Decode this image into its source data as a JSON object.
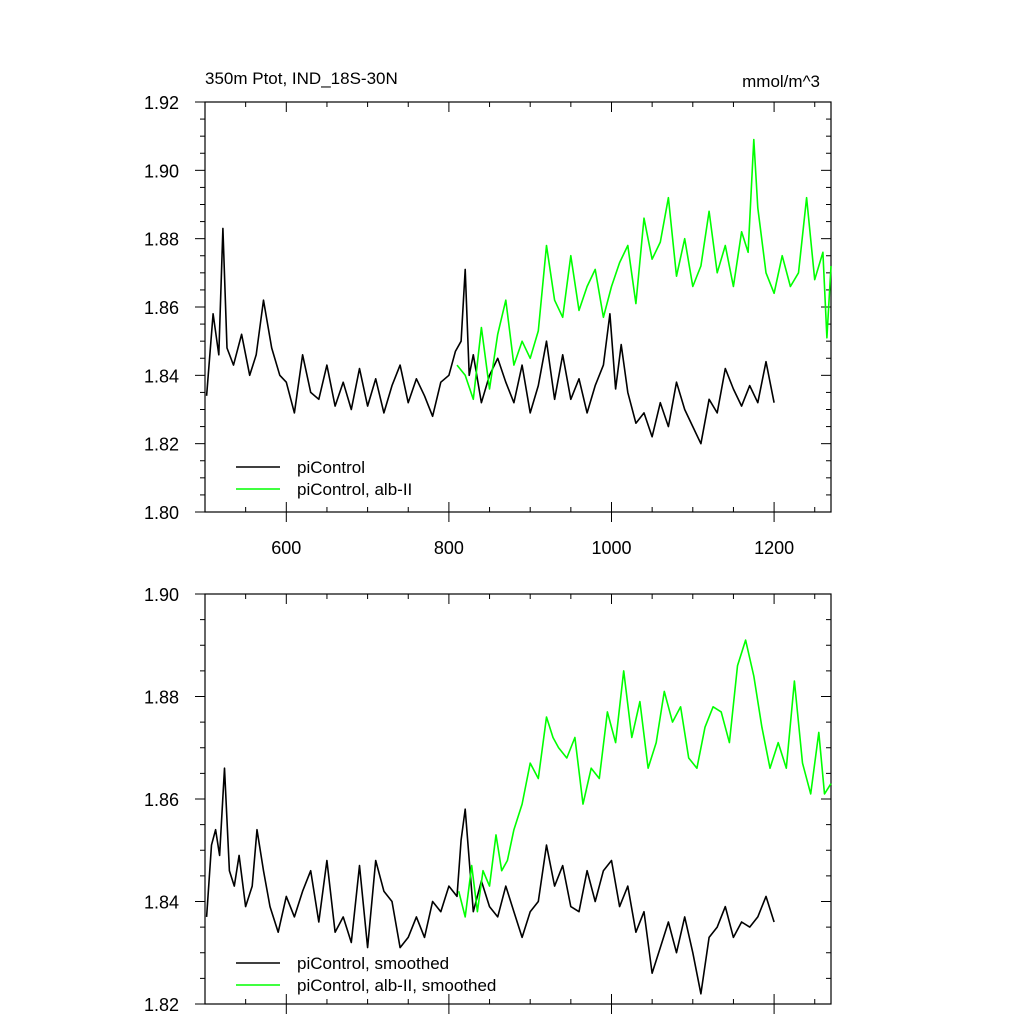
{
  "chart_data": [
    {
      "type": "line",
      "title": "350m Ptot, IND_18S-30N",
      "units": "mmol/m^3",
      "xlim": [
        500,
        1270
      ],
      "ylim": [
        1.8,
        1.92
      ],
      "x_ticks": [
        600,
        800,
        1000,
        1200
      ],
      "x_tick_labels": [
        "600",
        "800",
        "1000",
        "1200"
      ],
      "y_ticks": [
        1.8,
        1.82,
        1.84,
        1.86,
        1.88,
        1.9,
        1.92
      ],
      "y_tick_labels": [
        "1.80",
        "1.82",
        "1.84",
        "1.86",
        "1.88",
        "1.90",
        "1.92"
      ],
      "legend_position": "bottom-left",
      "series": [
        {
          "name": "piControl",
          "color": "#000000",
          "x": [
            502,
            510,
            517,
            522,
            527,
            535,
            545,
            555,
            563,
            572,
            582,
            592,
            600,
            610,
            620,
            630,
            640,
            650,
            660,
            670,
            680,
            690,
            700,
            710,
            720,
            730,
            740,
            750,
            760,
            770,
            780,
            790,
            800,
            808,
            815,
            820,
            825,
            830,
            840,
            850,
            860,
            870,
            880,
            890,
            900,
            910,
            920,
            930,
            940,
            950,
            960,
            970,
            980,
            990,
            998,
            1005,
            1012,
            1020,
            1030,
            1040,
            1050,
            1060,
            1070,
            1080,
            1090,
            1100,
            1110,
            1120,
            1130,
            1140,
            1150,
            1160,
            1170,
            1180,
            1190,
            1200
          ],
          "values": [
            1.834,
            1.858,
            1.846,
            1.883,
            1.848,
            1.843,
            1.852,
            1.84,
            1.846,
            1.862,
            1.848,
            1.84,
            1.838,
            1.829,
            1.846,
            1.835,
            1.833,
            1.843,
            1.831,
            1.838,
            1.83,
            1.842,
            1.831,
            1.839,
            1.829,
            1.837,
            1.843,
            1.832,
            1.839,
            1.834,
            1.828,
            1.838,
            1.84,
            1.847,
            1.85,
            1.871,
            1.84,
            1.846,
            1.832,
            1.84,
            1.845,
            1.838,
            1.832,
            1.843,
            1.829,
            1.837,
            1.85,
            1.833,
            1.846,
            1.833,
            1.839,
            1.829,
            1.837,
            1.843,
            1.858,
            1.836,
            1.849,
            1.835,
            1.826,
            1.829,
            1.822,
            1.832,
            1.825,
            1.838,
            1.83,
            1.825,
            1.82,
            1.833,
            1.829,
            1.842,
            1.836,
            1.831,
            1.837,
            1.832,
            1.844,
            1.832
          ]
        },
        {
          "name": "piControl, alb-II",
          "color": "#00ff00",
          "x": [
            810,
            820,
            830,
            840,
            850,
            860,
            870,
            880,
            890,
            900,
            910,
            920,
            930,
            940,
            950,
            960,
            970,
            980,
            990,
            1000,
            1010,
            1020,
            1030,
            1040,
            1050,
            1060,
            1070,
            1080,
            1090,
            1100,
            1110,
            1120,
            1130,
            1140,
            1150,
            1160,
            1168,
            1175,
            1180,
            1190,
            1200,
            1210,
            1220,
            1230,
            1240,
            1250,
            1260,
            1265,
            1270
          ],
          "values": [
            1.843,
            1.84,
            1.833,
            1.854,
            1.836,
            1.852,
            1.862,
            1.843,
            1.85,
            1.845,
            1.853,
            1.878,
            1.862,
            1.857,
            1.875,
            1.859,
            1.866,
            1.871,
            1.857,
            1.866,
            1.873,
            1.878,
            1.861,
            1.886,
            1.874,
            1.879,
            1.892,
            1.869,
            1.88,
            1.866,
            1.872,
            1.888,
            1.87,
            1.878,
            1.866,
            1.882,
            1.876,
            1.909,
            1.889,
            1.87,
            1.864,
            1.875,
            1.866,
            1.87,
            1.892,
            1.868,
            1.876,
            1.851,
            1.872
          ]
        }
      ],
      "legend": [
        {
          "label": "piControl",
          "color": "#000000"
        },
        {
          "label": "piControl, alb-II",
          "color": "#00ff00"
        }
      ]
    },
    {
      "type": "line",
      "title": "",
      "xlim": [
        500,
        1270
      ],
      "ylim": [
        1.82,
        1.9
      ],
      "x_ticks": [
        600,
        800,
        1000,
        1200
      ],
      "x_tick_labels": [],
      "y_ticks": [
        1.82,
        1.84,
        1.86,
        1.88,
        1.9
      ],
      "y_tick_labels": [
        "1.82",
        "1.84",
        "1.86",
        "1.88",
        "1.90"
      ],
      "legend_position": "bottom-left",
      "series": [
        {
          "name": "piControl, smoothed",
          "color": "#000000",
          "x": [
            502,
            508,
            513,
            518,
            524,
            530,
            536,
            542,
            550,
            558,
            564,
            572,
            580,
            590,
            600,
            610,
            620,
            630,
            640,
            650,
            660,
            670,
            680,
            690,
            700,
            710,
            720,
            730,
            740,
            750,
            760,
            770,
            780,
            790,
            800,
            810,
            815,
            820,
            830,
            840,
            850,
            860,
            870,
            880,
            890,
            900,
            910,
            920,
            930,
            940,
            950,
            960,
            970,
            980,
            990,
            1000,
            1010,
            1020,
            1030,
            1040,
            1050,
            1060,
            1070,
            1080,
            1090,
            1100,
            1110,
            1120,
            1130,
            1140,
            1150,
            1160,
            1170,
            1180,
            1190,
            1200
          ],
          "values": [
            1.837,
            1.851,
            1.854,
            1.849,
            1.866,
            1.846,
            1.843,
            1.849,
            1.839,
            1.843,
            1.854,
            1.846,
            1.839,
            1.834,
            1.841,
            1.837,
            1.842,
            1.846,
            1.836,
            1.848,
            1.834,
            1.837,
            1.832,
            1.847,
            1.831,
            1.848,
            1.842,
            1.84,
            1.831,
            1.833,
            1.837,
            1.833,
            1.84,
            1.838,
            1.843,
            1.841,
            1.852,
            1.858,
            1.838,
            1.844,
            1.839,
            1.837,
            1.843,
            1.838,
            1.833,
            1.838,
            1.84,
            1.851,
            1.843,
            1.847,
            1.839,
            1.838,
            1.846,
            1.84,
            1.846,
            1.848,
            1.839,
            1.843,
            1.834,
            1.838,
            1.826,
            1.831,
            1.836,
            1.83,
            1.837,
            1.83,
            1.822,
            1.833,
            1.835,
            1.839,
            1.833,
            1.836,
            1.835,
            1.837,
            1.841,
            1.836
          ]
        },
        {
          "name": "piControl, alb-II, smoothed",
          "color": "#00ff00",
          "x": [
            812,
            820,
            828,
            835,
            842,
            850,
            858,
            865,
            872,
            880,
            890,
            900,
            910,
            920,
            928,
            935,
            945,
            955,
            965,
            975,
            985,
            995,
            1005,
            1015,
            1025,
            1035,
            1045,
            1055,
            1065,
            1075,
            1085,
            1095,
            1105,
            1115,
            1125,
            1135,
            1145,
            1155,
            1165,
            1175,
            1185,
            1195,
            1205,
            1215,
            1225,
            1235,
            1245,
            1255,
            1262,
            1270
          ],
          "values": [
            1.842,
            1.837,
            1.847,
            1.838,
            1.846,
            1.843,
            1.853,
            1.846,
            1.848,
            1.854,
            1.859,
            1.867,
            1.864,
            1.876,
            1.872,
            1.87,
            1.868,
            1.872,
            1.859,
            1.866,
            1.864,
            1.877,
            1.871,
            1.885,
            1.872,
            1.879,
            1.866,
            1.871,
            1.881,
            1.875,
            1.878,
            1.868,
            1.866,
            1.874,
            1.878,
            1.877,
            1.871,
            1.886,
            1.891,
            1.884,
            1.874,
            1.866,
            1.871,
            1.866,
            1.883,
            1.867,
            1.861,
            1.873,
            1.861,
            1.863
          ]
        }
      ],
      "legend": [
        {
          "label": "piControl, smoothed",
          "color": "#000000"
        },
        {
          "label": "piControl, alb-II, smoothed",
          "color": "#00ff00"
        }
      ]
    }
  ]
}
